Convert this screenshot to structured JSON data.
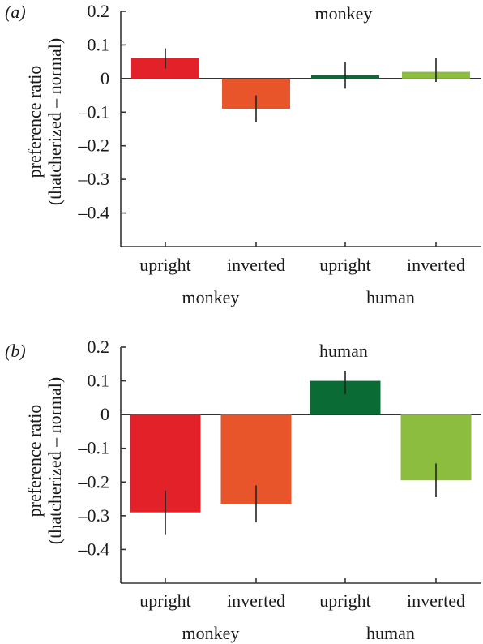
{
  "chart_data": [
    {
      "type": "bar",
      "panel_label": "(a)",
      "title": "monkey",
      "ylabel": [
        "preference ratio",
        "(thatcherized – normal)"
      ],
      "categories": [
        "upright",
        "inverted",
        "upright",
        "inverted"
      ],
      "groups": [
        {
          "label": "monkey",
          "categories": [
            "upright",
            "inverted"
          ]
        },
        {
          "label": "human",
          "categories": [
            "upright",
            "inverted"
          ]
        }
      ],
      "values": [
        0.06,
        -0.09,
        0.01,
        0.02
      ],
      "error_bars": [
        [
          0.03,
          0.09
        ],
        [
          -0.13,
          -0.05
        ],
        [
          -0.03,
          0.05
        ],
        [
          -0.01,
          0.06
        ]
      ],
      "colors": [
        "#e32129",
        "#e8552a",
        "#0b6b35",
        "#8dbd3e"
      ],
      "ylim": [
        -0.5,
        0.2
      ],
      "yticks": [
        0.2,
        0.1,
        0,
        -0.1,
        -0.2,
        -0.3,
        -0.4
      ],
      "ytick_labels": [
        "0.2",
        "0.1",
        "0",
        "–0.1",
        "–0.2",
        "–0.3",
        "–0.4"
      ]
    },
    {
      "type": "bar",
      "panel_label": "(b)",
      "title": "human",
      "ylabel": [
        "preference ratio",
        "(thatcherized – normal)"
      ],
      "categories": [
        "upright",
        "inverted",
        "upright",
        "inverted"
      ],
      "groups": [
        {
          "label": "monkey",
          "categories": [
            "upright",
            "inverted"
          ]
        },
        {
          "label": "human",
          "categories": [
            "upright",
            "inverted"
          ]
        }
      ],
      "values": [
        -0.29,
        -0.265,
        0.1,
        -0.195
      ],
      "error_bars": [
        [
          -0.355,
          -0.225
        ],
        [
          -0.32,
          -0.21
        ],
        [
          0.06,
          0.13
        ],
        [
          -0.245,
          -0.145
        ]
      ],
      "colors": [
        "#e32129",
        "#e8552a",
        "#0b6b35",
        "#8dbd3e"
      ],
      "ylim": [
        -0.5,
        0.2
      ],
      "yticks": [
        0.2,
        0.1,
        0,
        -0.1,
        -0.2,
        -0.3,
        -0.4
      ],
      "ytick_labels": [
        "0.2",
        "0.1",
        "0",
        "–0.1",
        "–0.2",
        "–0.3",
        "–0.4"
      ]
    }
  ]
}
